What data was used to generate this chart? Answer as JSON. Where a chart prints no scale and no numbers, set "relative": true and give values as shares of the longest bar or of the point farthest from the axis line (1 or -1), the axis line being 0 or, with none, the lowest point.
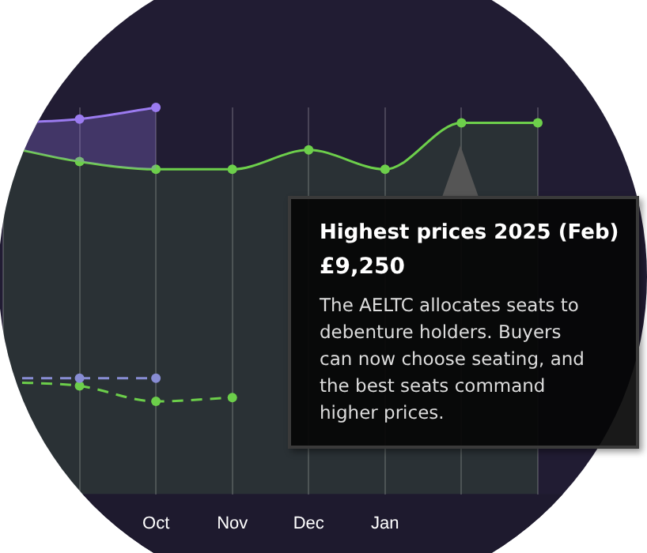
{
  "chart_data": {
    "type": "area",
    "relative": true,
    "categories": [
      null,
      null,
      "Oct",
      "Nov",
      "Dec",
      "Jan",
      null,
      null
    ],
    "series": [
      {
        "color": "#9b7bf0",
        "values": [
          0.96,
          0.97,
          1.0,
          null,
          null,
          null,
          null,
          null
        ]
      },
      {
        "color": "#6dcf4b",
        "values": [
          0.9,
          0.86,
          0.84,
          0.84,
          0.89,
          0.84,
          0.96,
          0.96
        ]
      },
      {
        "type": "line",
        "color": "#8c84e8",
        "line_style": "dashed",
        "values": [
          0.3,
          0.3,
          0.3,
          null,
          null,
          null,
          null,
          null
        ]
      },
      {
        "type": "line",
        "color": "#6dcf4b",
        "line_style": "dashed",
        "values": [
          0.29,
          0.28,
          0.24,
          0.25,
          null,
          null,
          null,
          null
        ]
      }
    ],
    "grid": "x",
    "legend": false,
    "marker": "circle",
    "tick_labels": "x",
    "annotations": [
      "Highest prices 2025 (Feb)",
      "£9,250",
      "The AELTC allocates seats to debenture holders. Buyers can now choose seating, and the best seats command higher prices."
    ]
  }
}
